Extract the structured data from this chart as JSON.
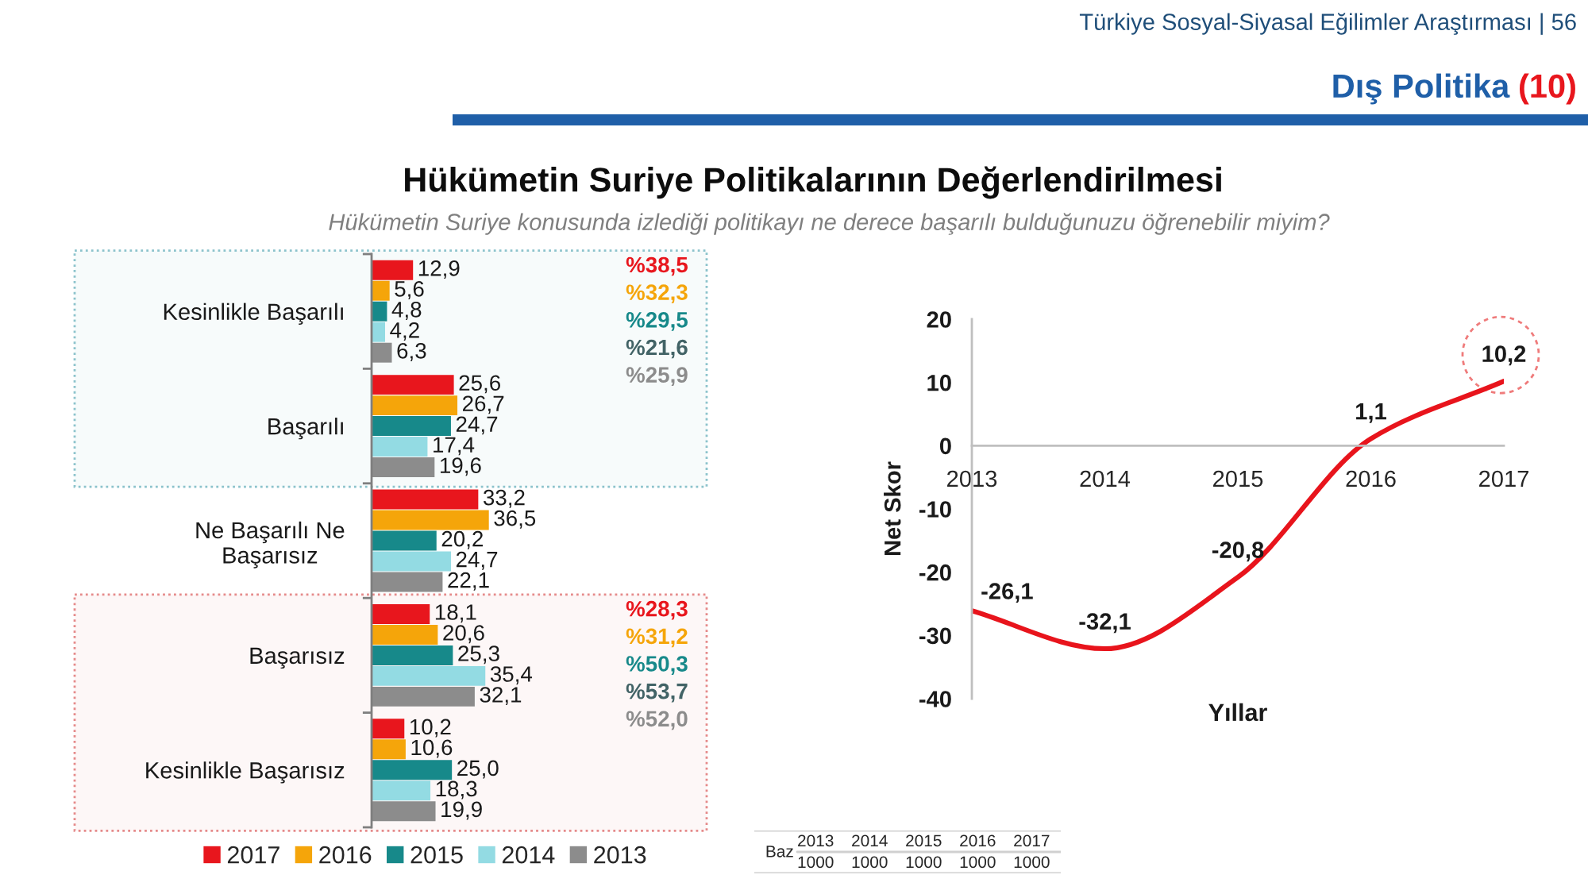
{
  "chart_data": [
    {
      "type": "bar",
      "orientation": "horizontal",
      "title": "Hükümetin Suriye Politikalarının Değerlendirilmesi",
      "subtitle": "Hükümetin Suriye konusunda izlediği politikayı ne derece başarılı bulduğunuzu öğrenebilir miyim?",
      "categories": [
        "Kesinlikle Başarılı",
        "Başarılı",
        "Ne Başarılı Ne\nBaşarısız",
        "Başarısız",
        "Kesinlikle Başarısız"
      ],
      "series": [
        {
          "name": "2017",
          "color": "#e8161d",
          "values": [
            12.9,
            25.6,
            33.2,
            18.1,
            10.2
          ],
          "value_labels": [
            "12,9",
            "25,6",
            "33,2",
            "18,1",
            "10,2"
          ]
        },
        {
          "name": "2016",
          "color": "#f5a50a",
          "values": [
            5.6,
            26.7,
            36.5,
            20.6,
            10.6
          ],
          "value_labels": [
            "5,6",
            "26,7",
            "36,5",
            "20,6",
            "10,6"
          ]
        },
        {
          "name": "2015",
          "color": "#17898a",
          "values": [
            4.8,
            24.7,
            20.2,
            25.3,
            25.0
          ],
          "value_labels": [
            "4,8",
            "24,7",
            "20,2",
            "25,3",
            "25,0"
          ]
        },
        {
          "name": "2014",
          "color": "#93dbe3",
          "values": [
            4.2,
            17.4,
            24.7,
            35.4,
            18.3
          ],
          "value_labels": [
            "4,2",
            "17,4",
            "24,7",
            "35,4",
            "18,3"
          ]
        },
        {
          "name": "2013",
          "color": "#8c8c8c",
          "values": [
            6.3,
            19.6,
            22.1,
            32.1,
            19.9
          ],
          "value_labels": [
            "6,3",
            "19,6",
            "22,1",
            "32,1",
            "19,9"
          ]
        }
      ],
      "bands": [
        {
          "axis": "y",
          "from": "Kesinlikle Başarılı",
          "to": "Başarılı",
          "color": "#8cc3cc"
        },
        {
          "axis": "y",
          "from": "Başarısız",
          "to": "Kesinlikle Başarısız",
          "color": "#e58a8a"
        }
      ],
      "annotations": [
        "Türkiye Sosyal-Siyasal Eğilimler Araştırması | 56",
        "Dış Politika",
        "(10)",
        "%38,5",
        "%32,3",
        "%29,5",
        "%21,6",
        "%25,9",
        "%28,3",
        "%31,2",
        "%50,3",
        "%53,7",
        "%52,0"
      ],
      "legend": "bottom",
      "tick_labels": "y"
    },
    {
      "type": "line",
      "categories": [
        "2013",
        "2014",
        "2015",
        "2016",
        "2017"
      ],
      "series": [
        {
          "color": "#e8141c",
          "values": [
            -26.1,
            -32.1,
            -20.8,
            1.1,
            10.2
          ],
          "value_labels": [
            "-26,1",
            "-32,1",
            "-20,8",
            "1,1",
            "10,2"
          ]
        }
      ],
      "xlabel": "Yıllar",
      "ylabel": "Net Skor",
      "ylim": [
        -40,
        20
      ],
      "yticks": [
        -40,
        -30,
        -20,
        -10,
        0,
        10,
        20
      ],
      "annotations": [
        "Baz",
        "2013",
        "2014",
        "2015",
        "2016",
        "2017",
        "1000",
        "1000",
        "1000",
        "1000",
        "1000"
      ]
    }
  ]
}
